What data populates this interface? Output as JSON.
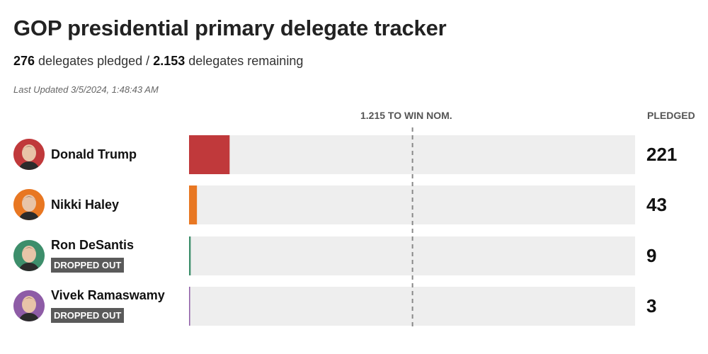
{
  "header": {
    "title": "GOP presidential primary delegate tracker",
    "pledged_count": "276",
    "pledged_text": " delegates pledged / ",
    "remaining_count": "2.153",
    "remaining_text": " delegates remaining",
    "last_updated": "Last Updated 3/5/2024, 1:48:43 AM"
  },
  "chart_data": {
    "type": "bar",
    "orientation": "horizontal",
    "threshold_label": "1.215 TO WIN NOM.",
    "threshold_value": 1215,
    "value_column_label": "PLEDGED",
    "xlim": [
      0,
      2429
    ],
    "categories": [
      "Donald Trump",
      "Nikki Haley",
      "Ron DeSantis",
      "Vivek Ramaswamy"
    ],
    "values": [
      221,
      43,
      9,
      3
    ],
    "bar_colors": [
      "#c0393b",
      "#e87722",
      "#3d8e6b",
      "#8e5ca6"
    ],
    "status": [
      "",
      "",
      "DROPPED OUT",
      "DROPPED OUT"
    ],
    "avatar_icons": [
      "trump-avatar-icon",
      "haley-avatar-icon",
      "desantis-avatar-icon",
      "ramaswamy-avatar-icon"
    ],
    "avatar_colors": [
      "#c0393b",
      "#e87722",
      "#3d8e6b",
      "#8e5ca6"
    ]
  }
}
